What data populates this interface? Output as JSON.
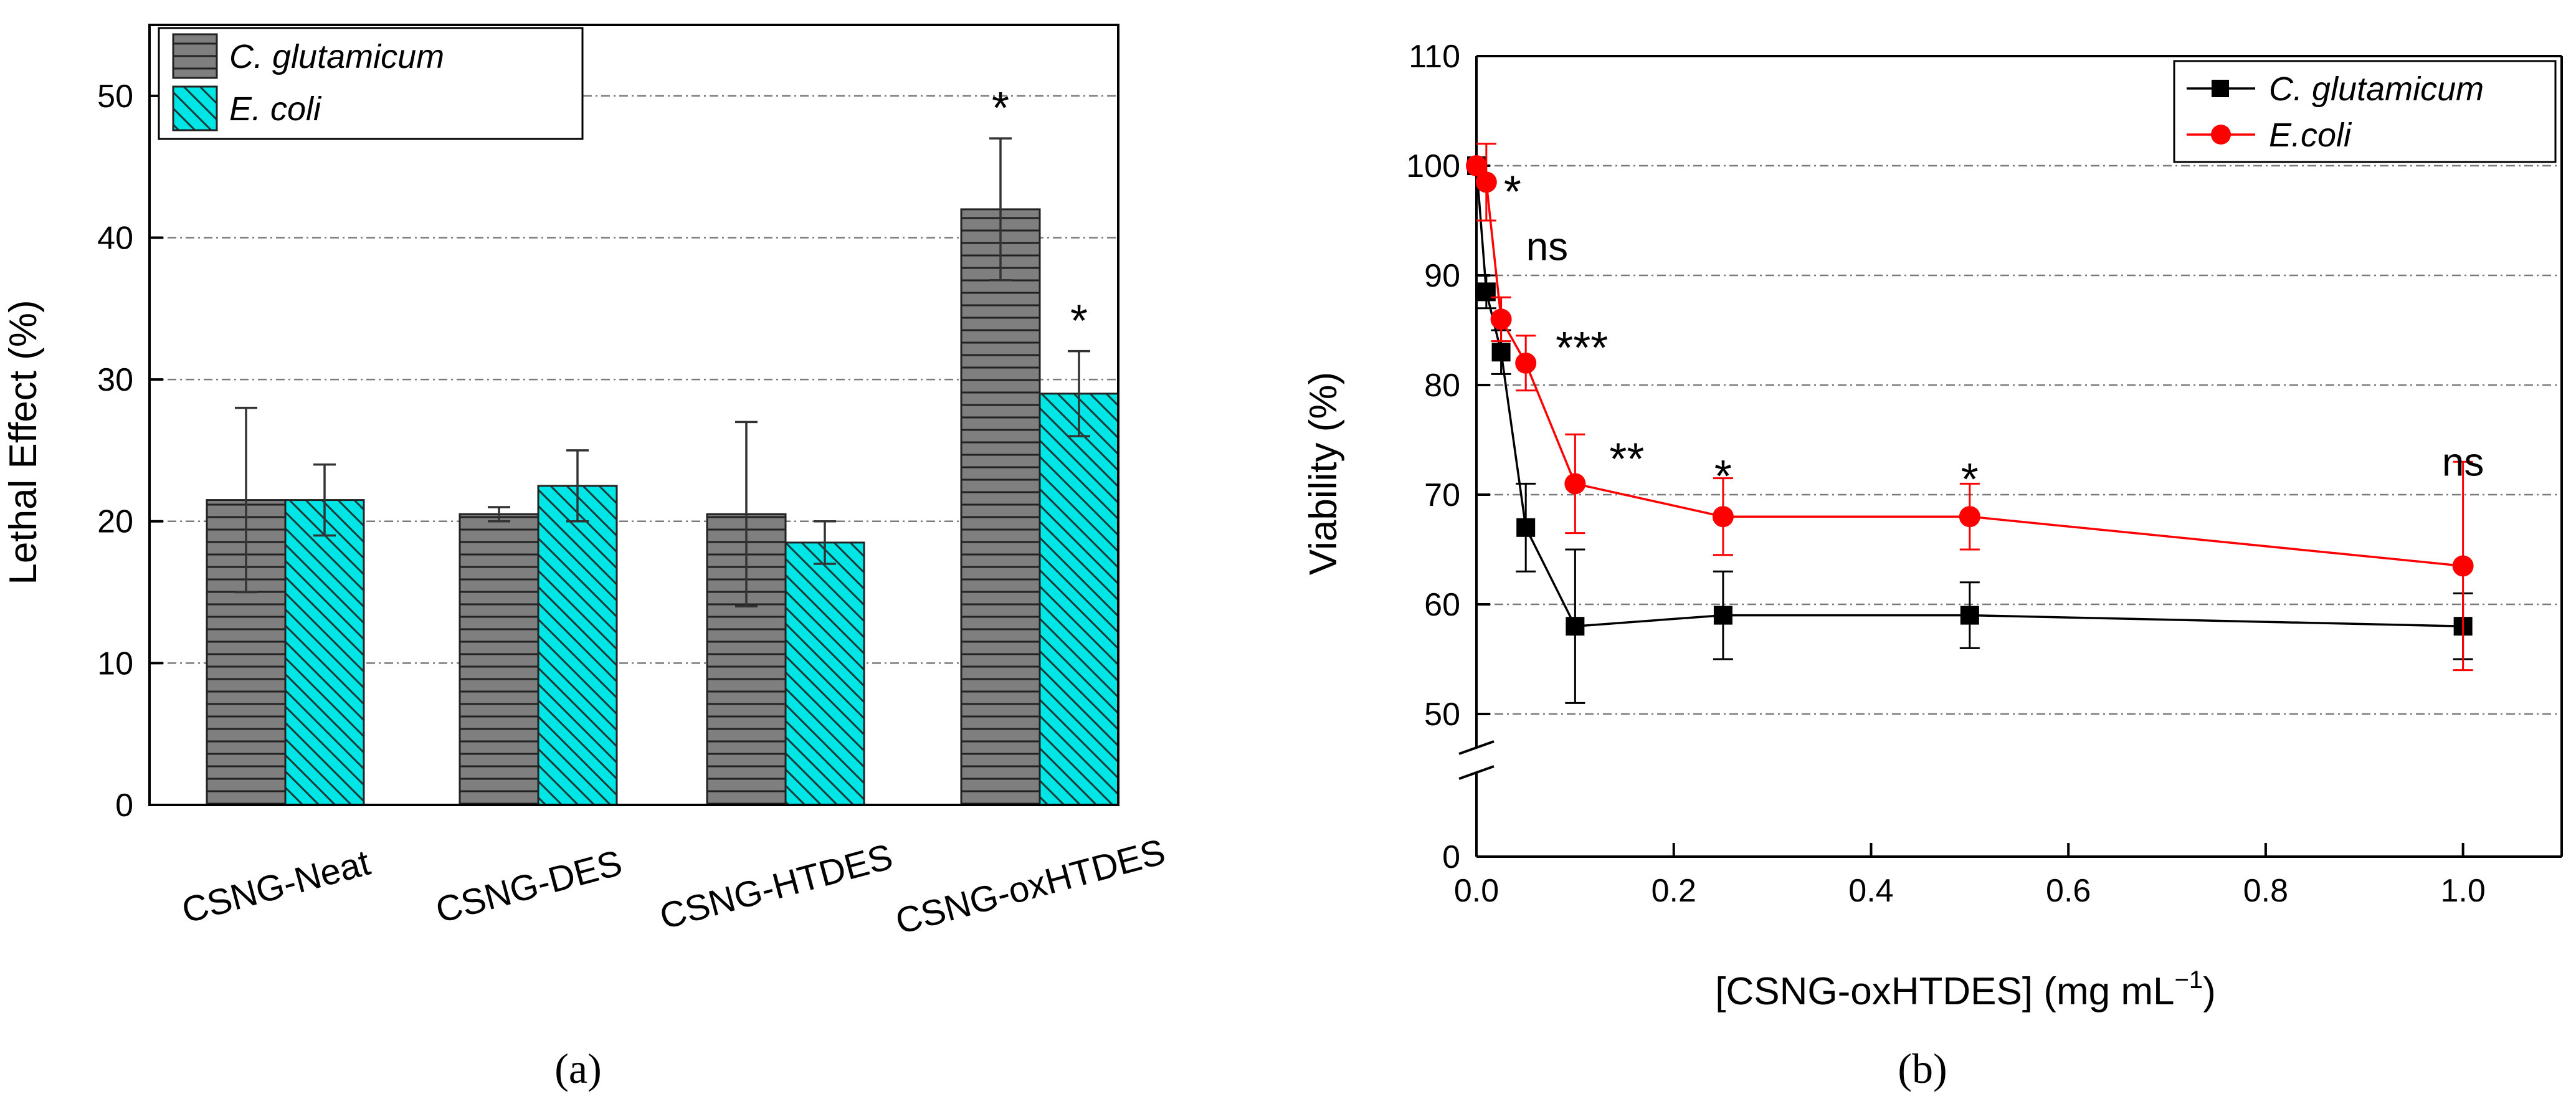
{
  "chart_data": [
    {
      "type": "bar",
      "panel_label": "(a)",
      "ylabel": "Lethal Effect (%)",
      "xlabel": "",
      "ylim": [
        0,
        55
      ],
      "yticks": [
        0,
        10,
        20,
        30,
        40,
        50
      ],
      "categories": [
        "CSNG-Neat",
        "CSNG-DES",
        "CSNG-HTDES",
        "CSNG-oxHTDES"
      ],
      "legend_position": "top-left",
      "series": [
        {
          "name": "C. glutamicum",
          "color": "#7f7f7f",
          "pattern": "horizontal-lines",
          "values": [
            21.5,
            20.5,
            20.5,
            42
          ],
          "errors": [
            6.5,
            0.5,
            6.5,
            5
          ],
          "annotations": [
            "",
            "",
            "",
            "*"
          ]
        },
        {
          "name": "E. coli",
          "color": "#00e5e5",
          "pattern": "diagonal-lines",
          "values": [
            21.5,
            22.5,
            18.5,
            29
          ],
          "errors": [
            2.5,
            2.5,
            1.5,
            3
          ],
          "annotations": [
            "",
            "",
            "",
            "*"
          ]
        }
      ]
    },
    {
      "type": "line",
      "panel_label": "(b)",
      "ylabel": "Viability (%)",
      "xlabel_parts": [
        "[CSNG-oxHTDES] (mg mL",
        "−1",
        ")"
      ],
      "xlim": [
        0,
        1.1
      ],
      "xticks": [
        0.0,
        0.2,
        0.4,
        0.6,
        0.8,
        1.0
      ],
      "xtick_labels": [
        "0.0",
        "0.2",
        "0.4",
        "0.6",
        "0.8",
        "1.0"
      ],
      "y_axis_break": true,
      "ylim_lower": [
        0,
        5
      ],
      "ylim_upper": [
        45,
        110
      ],
      "yticks": [
        0,
        50,
        60,
        70,
        80,
        90,
        100,
        110
      ],
      "legend_position": "top-right",
      "series": [
        {
          "name": "C. glutamicum",
          "color": "#000000",
          "marker": "square",
          "x": [
            0.0,
            0.01,
            0.025,
            0.05,
            0.1,
            0.25,
            0.5,
            1.0
          ],
          "y": [
            100,
            88.5,
            83,
            67,
            58,
            59,
            59,
            58
          ],
          "errors": [
            0,
            1.5,
            2,
            4,
            7,
            4,
            3,
            3
          ]
        },
        {
          "name": "E.coli",
          "color": "#ff0000",
          "marker": "circle",
          "x": [
            0.0,
            0.01,
            0.025,
            0.05,
            0.1,
            0.25,
            0.5,
            1.0
          ],
          "y": [
            100,
            98.5,
            86,
            82,
            71,
            68,
            68,
            63.5
          ],
          "errors": [
            0,
            3.5,
            2,
            2.5,
            4.5,
            3.5,
            3,
            9.5
          ]
        }
      ],
      "annotations": [
        {
          "x": 0.01,
          "y": 98.5,
          "text": "*"
        },
        {
          "x": 0.025,
          "y": 86,
          "text": "ns"
        },
        {
          "x": 0.05,
          "y": 82,
          "text": "***"
        },
        {
          "x": 0.1,
          "y": 71,
          "text": "**"
        },
        {
          "x": 0.25,
          "y": 68,
          "text": "*"
        },
        {
          "x": 0.5,
          "y": 68,
          "text": "*"
        },
        {
          "x": 1.0,
          "y": 63.5,
          "text": "ns"
        }
      ]
    }
  ]
}
